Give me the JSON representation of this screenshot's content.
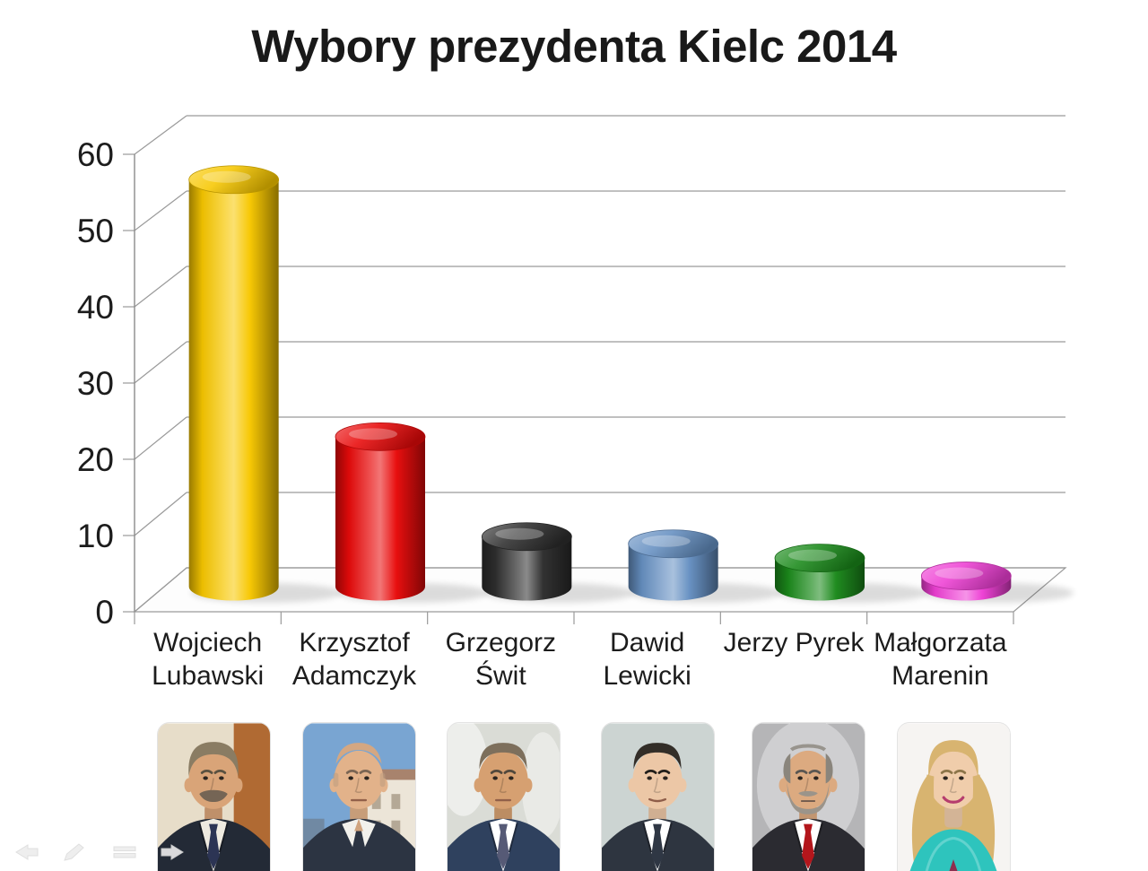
{
  "slide": {
    "title": "Wybory prezydenta Kielc 2014"
  },
  "chart_data": {
    "type": "bar",
    "subtype": "3d-cylinder",
    "title": "Wybory prezydenta Kielc 2014",
    "categories": [
      "Wojciech Lubawski",
      "Krzysztof Adamczyk",
      "Grzegorz Świt",
      "Dawid Lewicki",
      "Jerzy Pyrek",
      "Małgorzata Marenin"
    ],
    "category_label_lines": [
      [
        "Wojciech",
        "Lubawski"
      ],
      [
        "Krzysztof",
        "Adamczyk"
      ],
      [
        "Grzegorz",
        "Świt"
      ],
      [
        "Dawid",
        "Lewicki"
      ],
      [
        "Jerzy Pyrek"
      ],
      [
        "Małgorzata",
        "Marenin"
      ]
    ],
    "values": [
      57,
      21,
      7,
      6,
      4,
      1.5
    ],
    "bar_colors": [
      "#F7C700",
      "#E80A0A",
      "#2E2E2E",
      "#6690C2",
      "#1B8A1B",
      "#EE3FD4"
    ],
    "ylim": [
      0,
      60
    ],
    "ytick_interval": 10,
    "ytick_labels": [
      "0",
      "10",
      "20",
      "30",
      "40",
      "50",
      "60"
    ],
    "xlabel": "",
    "ylabel": "",
    "grid": true,
    "legend": false,
    "grid_color": "#9a9a9a",
    "text_color": "#1c1c1c"
  },
  "photos": [
    {
      "key": "lubawski",
      "candidate": "Wojciech Lubawski",
      "art": {
        "bg": "#e7ddc9",
        "band": {
          "x": 86,
          "w": 41,
          "color": "#b06a33"
        },
        "skin": "#d9a478",
        "hair": "#8a7c63",
        "hairStyle": "full",
        "facial": "mustache",
        "facialColor": "#756555",
        "suit": "#232a36",
        "shirt": "#eeeae0",
        "shirtStyle": "tie",
        "tie": "#2c3454"
      }
    },
    {
      "key": "adamczyk",
      "candidate": "Krzysztof Adamczyk",
      "art": {
        "bg": "#79a5d2",
        "building": true,
        "skin": "#e2b28a",
        "hair": "#bb9c80",
        "hairStyle": "bald",
        "suit": "#2c3442",
        "shirt": "#f2f1ec",
        "shirtStyle": "open"
      }
    },
    {
      "key": "swit",
      "candidate": "Grzegorz Świt",
      "art": {
        "bg": "#dadcd6",
        "blur": true,
        "skin": "#d6a071",
        "hair": "#7d6f5c",
        "hairStyle": "short",
        "suit": "#2f415e",
        "shirt": "#ffffff",
        "shirtStyle": "tie",
        "tie": "#565a76"
      }
    },
    {
      "key": "lewicki",
      "candidate": "Dawid Lewicki",
      "art": {
        "bg": "#ccd4d2",
        "skin": "#ecc7a6",
        "hair": "#332e28",
        "hairStyle": "short",
        "suit": "#2e3540",
        "shirt": "#ffffff",
        "shirtStyle": "tie",
        "tie": "#2f3744",
        "smile": "slight"
      }
    },
    {
      "key": "pyrek",
      "candidate": "Jerzy Pyrek",
      "art": {
        "bg": "#b5b5b7",
        "vignette": true,
        "skin": "#dcaa80",
        "hair": "#8a857c",
        "hairStyle": "balding",
        "facial": "beard",
        "facialColor": "#9b948a",
        "suit": "#2b2b31",
        "shirt": "#ffffff",
        "shirtStyle": "tie",
        "tie": "#b3161c"
      }
    },
    {
      "key": "marenin",
      "candidate": "Małgorzata Marenin",
      "art": {
        "bg": "#f6f4f2",
        "skin": "#f0cdab",
        "hair": "#d8b470",
        "hairStyle": "long",
        "scarf": "#2ec4bd",
        "garment": "#8e2f4f",
        "shirtStyle": "scarf",
        "smile": "big",
        "lip": "#b63d6e"
      }
    }
  ],
  "nav": {
    "items": [
      {
        "icon": "previous-slide-icon"
      },
      {
        "icon": "pen-tool-icon"
      },
      {
        "icon": "slide-menu-icon"
      },
      {
        "icon": "next-slide-icon"
      }
    ],
    "icon_color": "#ededed"
  }
}
